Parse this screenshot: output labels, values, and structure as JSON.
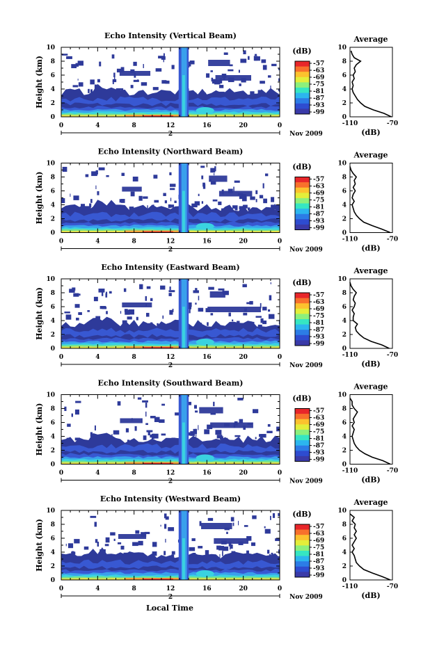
{
  "figure": {
    "xlabel": "Local Time",
    "date_label": "Nov 2009",
    "day_marker": "2",
    "colorbar_unit": "(dB)",
    "colorbar_ticks": [
      "-57",
      "-63",
      "-69",
      "-75",
      "-81",
      "-87",
      "-93",
      "-99"
    ],
    "colorbar_colors": [
      "#e8262a",
      "#f8702c",
      "#fcc22e",
      "#e4ee3a",
      "#8cf07c",
      "#36e6c2",
      "#2cb6ee",
      "#2c7ce6",
      "#2e4cd0",
      "#3a3aa8"
    ],
    "heat_colors": {
      "dark": "#2e3a9a",
      "mid": "#3858d2",
      "blue": "#3aa0ec",
      "cyan": "#3ad2e0",
      "green": "#7ae48a",
      "yellow": "#e8e24a",
      "orange": "#f4a23a",
      "red": "#e0322a"
    },
    "avg_title": "Average",
    "avg_xlabel": "(dB)",
    "avg_xticks": [
      "-110",
      "-70"
    ]
  },
  "chart_data": [
    {
      "type": "heatmap",
      "title": "Echo Intensity (Vertical Beam)",
      "ylabel": "Height (km)",
      "xlabel": "",
      "xticks": [
        "0",
        "4",
        "8",
        "12",
        "16",
        "20",
        "0"
      ],
      "yticks": [
        "0",
        "2",
        "4",
        "6",
        "8",
        "10"
      ],
      "xlim": [
        0,
        24
      ],
      "ylim": [
        0,
        10
      ],
      "value_range_dB": [
        -99,
        -57
      ],
      "average_profile": {
        "x_range": [
          -110,
          -70
        ],
        "height_km": [
          0,
          0.5,
          1,
          1.5,
          2,
          2.5,
          3,
          3.5,
          4,
          4.5,
          5,
          5.5,
          6,
          6.5,
          7,
          7.5,
          8,
          8.5,
          9,
          9.5
        ],
        "dB": [
          -71,
          -78,
          -88,
          -96,
          -100,
          -103,
          -105,
          -107,
          -108,
          -107,
          -108,
          -106,
          -107,
          -105,
          -106,
          -104,
          -100,
          -106,
          -108,
          -109
        ]
      }
    },
    {
      "type": "heatmap",
      "title": "Echo Intensity (Northward Beam)",
      "ylabel": "Height (km)",
      "xlabel": "",
      "xticks": [
        "0",
        "4",
        "8",
        "12",
        "16",
        "20",
        "0"
      ],
      "yticks": [
        "0",
        "2",
        "4",
        "6",
        "8",
        "10"
      ],
      "xlim": [
        0,
        24
      ],
      "ylim": [
        0,
        10
      ],
      "value_range_dB": [
        -99,
        -57
      ],
      "average_profile": {
        "x_range": [
          -110,
          -70
        ],
        "height_km": [
          0,
          0.5,
          1,
          1.5,
          2,
          2.5,
          3,
          3.5,
          4,
          4.5,
          5,
          5.5,
          6,
          6.5,
          7,
          7.5,
          8,
          8.5,
          9,
          9.5
        ],
        "dB": [
          -72,
          -80,
          -89,
          -97,
          -101,
          -104,
          -106,
          -107,
          -108,
          -106,
          -108,
          -107,
          -105,
          -107,
          -105,
          -106,
          -104,
          -107,
          -109,
          -110
        ]
      }
    },
    {
      "type": "heatmap",
      "title": "Echo Intensity (Eastward Beam)",
      "ylabel": "Height (km)",
      "xlabel": "",
      "xticks": [
        "0",
        "4",
        "8",
        "12",
        "16",
        "20",
        "0"
      ],
      "yticks": [
        "0",
        "2",
        "4",
        "6",
        "8",
        "10"
      ],
      "xlim": [
        0,
        24
      ],
      "ylim": [
        0,
        10
      ],
      "value_range_dB": [
        -99,
        -57
      ],
      "average_profile": {
        "x_range": [
          -110,
          -70
        ],
        "height_km": [
          0,
          0.5,
          1,
          1.5,
          2,
          2.5,
          3,
          3.5,
          4,
          4.5,
          5,
          5.5,
          6,
          6.5,
          7,
          7.5,
          8,
          8.5,
          9,
          9.5
        ],
        "dB": [
          -73,
          -80,
          -90,
          -97,
          -101,
          -104,
          -105,
          -103,
          -107,
          -107,
          -106,
          -108,
          -106,
          -105,
          -107,
          -106,
          -104,
          -107,
          -109,
          -110
        ]
      }
    },
    {
      "type": "heatmap",
      "title": "Echo Intensity (Southward Beam)",
      "ylabel": "Height (km)",
      "xlabel": "",
      "xticks": [
        "0",
        "4",
        "8",
        "12",
        "16",
        "20",
        "0"
      ],
      "yticks": [
        "0",
        "2",
        "4",
        "6",
        "8",
        "10"
      ],
      "xlim": [
        0,
        24
      ],
      "ylim": [
        0,
        10
      ],
      "value_range_dB": [
        -99,
        -57
      ],
      "average_profile": {
        "x_range": [
          -110,
          -70
        ],
        "height_km": [
          0,
          0.5,
          1,
          1.5,
          2,
          2.5,
          3,
          3.5,
          4,
          4.5,
          5,
          5.5,
          6,
          6.5,
          7,
          7.5,
          8,
          8.5,
          9,
          9.5
        ],
        "dB": [
          -72,
          -79,
          -89,
          -96,
          -101,
          -104,
          -106,
          -107,
          -108,
          -107,
          -106,
          -108,
          -106,
          -107,
          -105,
          -103,
          -106,
          -108,
          -108,
          -110
        ]
      }
    },
    {
      "type": "heatmap",
      "title": "Echo Intensity (Westward Beam)",
      "ylabel": "Height (km)",
      "xlabel": "Local Time",
      "xticks": [
        "0",
        "4",
        "8",
        "12",
        "16",
        "20",
        "0"
      ],
      "yticks": [
        "0",
        "2",
        "4",
        "6",
        "8",
        "10"
      ],
      "xlim": [
        0,
        24
      ],
      "ylim": [
        0,
        10
      ],
      "value_range_dB": [
        -99,
        -57
      ],
      "average_profile": {
        "x_range": [
          -110,
          -70
        ],
        "height_km": [
          0,
          0.5,
          1,
          1.5,
          2,
          2.5,
          3,
          3.5,
          4,
          4.5,
          5,
          5.5,
          6,
          6.5,
          7,
          7.5,
          8,
          8.5,
          9,
          9.5
        ],
        "dB": [
          -72,
          -80,
          -89,
          -97,
          -101,
          -104,
          -105,
          -106,
          -108,
          -106,
          -108,
          -106,
          -104,
          -106,
          -104,
          -106,
          -105,
          -108,
          -106,
          -110
        ]
      }
    }
  ]
}
